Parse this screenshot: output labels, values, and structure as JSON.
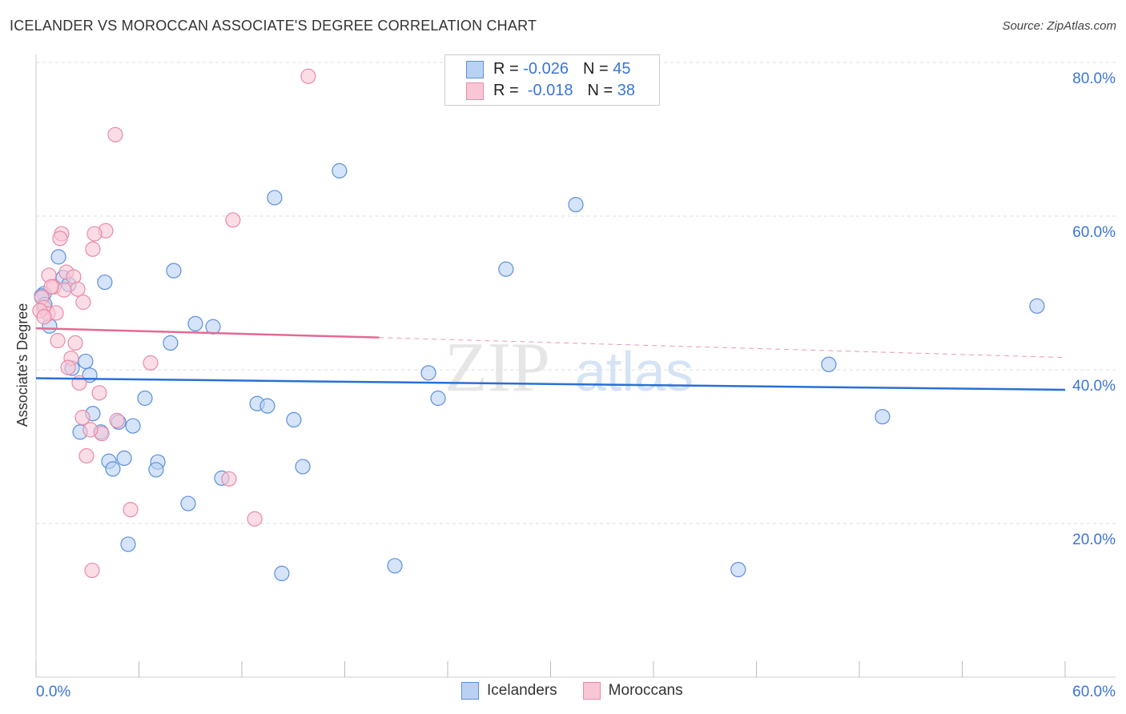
{
  "title": "ICELANDER VS MOROCCAN ASSOCIATE'S DEGREE CORRELATION CHART",
  "source": "Source: ZipAtlas.com",
  "watermark": "ZIPatlas",
  "legend": {
    "r_label": "R =",
    "n_label": "N =",
    "icelanders": {
      "r": "-0.026",
      "n": "45"
    },
    "moroccans": {
      "r": "-0.018",
      "n": "38"
    }
  },
  "chart_data": {
    "type": "scatter",
    "title": "ICELANDER VS MOROCCAN ASSOCIATE'S DEGREE CORRELATION CHART",
    "xlabel": "",
    "ylabel": "Associate's Degree",
    "xlim": [
      0,
      60
    ],
    "ylim": [
      0,
      80
    ],
    "x_tick_labels": [
      "0.0%",
      "60.0%"
    ],
    "y_ticks": [
      20,
      40,
      60,
      80
    ],
    "y_tick_labels": [
      "20.0%",
      "40.0%",
      "60.0%",
      "80.0%"
    ],
    "grid": true,
    "legend_placement": "bottom-center",
    "series": [
      {
        "name": "Icelanders",
        "color": "#5b8fde",
        "fill": "#b9d2f3",
        "trend": {
          "x0": 0,
          "y0": 38.9,
          "x1": 60,
          "y1": 37.4,
          "color": "#2a6fd6"
        },
        "points": [
          [
            1.31,
            54.7
          ],
          [
            1.59,
            52.0
          ],
          [
            1.91,
            51.1
          ],
          [
            0.47,
            49.9
          ],
          [
            0.33,
            49.6
          ],
          [
            0.51,
            48.5
          ],
          [
            0.79,
            45.7
          ],
          [
            2.89,
            41.1
          ],
          [
            3.13,
            39.3
          ],
          [
            2.1,
            40.2
          ],
          [
            3.31,
            34.3
          ],
          [
            2.57,
            31.9
          ],
          [
            3.78,
            31.9
          ],
          [
            4.25,
            28.1
          ],
          [
            4.48,
            27.1
          ],
          [
            5.14,
            28.5
          ],
          [
            4.81,
            33.2
          ],
          [
            5.65,
            32.7
          ],
          [
            5.37,
            17.3
          ],
          [
            4.01,
            51.4
          ],
          [
            6.35,
            36.3
          ],
          [
            7.1,
            28.0
          ],
          [
            7.0,
            27.0
          ],
          [
            7.84,
            43.5
          ],
          [
            8.03,
            52.9
          ],
          [
            8.87,
            22.6
          ],
          [
            9.29,
            46.0
          ],
          [
            10.32,
            45.6
          ],
          [
            10.83,
            25.9
          ],
          [
            12.89,
            35.6
          ],
          [
            13.49,
            35.3
          ],
          [
            13.91,
            62.4
          ],
          [
            14.33,
            13.5
          ],
          [
            15.03,
            33.5
          ],
          [
            15.55,
            27.4
          ],
          [
            17.69,
            65.9
          ],
          [
            20.92,
            14.5
          ],
          [
            22.88,
            39.6
          ],
          [
            23.44,
            36.3
          ],
          [
            27.4,
            53.1
          ],
          [
            31.47,
            61.5
          ],
          [
            40.94,
            14.0
          ],
          [
            46.22,
            40.7
          ],
          [
            49.35,
            33.9
          ],
          [
            58.36,
            48.3
          ]
        ]
      },
      {
        "name": "Moroccans",
        "color": "#e88aa8",
        "fill": "#f8c6d5",
        "trend": {
          "x0": 0,
          "y0": 45.4,
          "x1": 20,
          "y1": 44.2,
          "x2": 60,
          "y2": 41.6,
          "color": "#e36a93"
        },
        "points": [
          [
            15.87,
            78.2
          ],
          [
            4.62,
            70.6
          ],
          [
            11.48,
            59.5
          ],
          [
            1.49,
            57.7
          ],
          [
            1.4,
            57.1
          ],
          [
            4.06,
            58.1
          ],
          [
            3.41,
            57.7
          ],
          [
            3.31,
            55.7
          ],
          [
            0.75,
            52.3
          ],
          [
            1.77,
            52.7
          ],
          [
            2.19,
            52.1
          ],
          [
            1.03,
            50.8
          ],
          [
            2.43,
            50.5
          ],
          [
            1.63,
            50.4
          ],
          [
            2.75,
            48.8
          ],
          [
            0.33,
            49.4
          ],
          [
            0.47,
            48.1
          ],
          [
            0.7,
            47.3
          ],
          [
            1.17,
            47.4
          ],
          [
            0.23,
            47.7
          ],
          [
            1.26,
            43.8
          ],
          [
            2.29,
            43.5
          ],
          [
            2.05,
            41.5
          ],
          [
            1.87,
            40.3
          ],
          [
            6.68,
            40.9
          ],
          [
            2.52,
            38.3
          ],
          [
            3.69,
            37.0
          ],
          [
            2.71,
            33.8
          ],
          [
            3.83,
            31.7
          ],
          [
            4.72,
            33.4
          ],
          [
            3.17,
            32.2
          ],
          [
            2.94,
            28.8
          ],
          [
            5.51,
            21.8
          ],
          [
            11.25,
            25.8
          ],
          [
            12.75,
            20.6
          ],
          [
            3.27,
            13.9
          ],
          [
            0.89,
            50.8
          ],
          [
            0.47,
            46.9
          ]
        ]
      }
    ]
  }
}
